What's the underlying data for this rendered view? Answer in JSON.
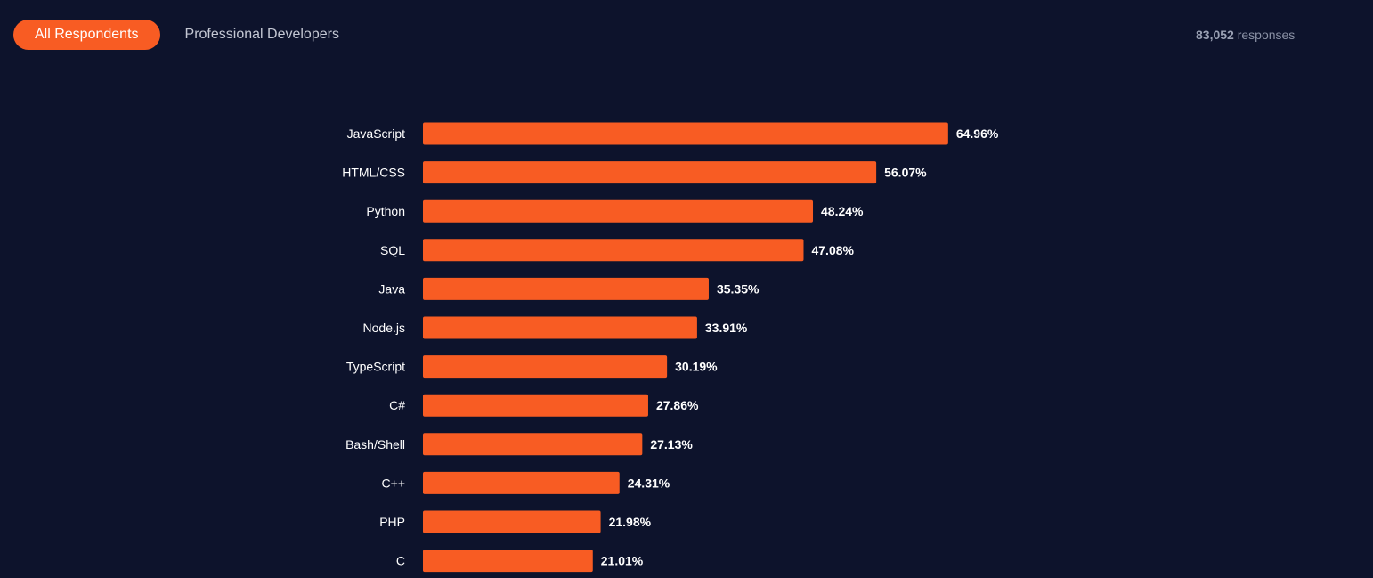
{
  "tabs": [
    {
      "label": "All Respondents",
      "active": true
    },
    {
      "label": "Professional Developers",
      "active": false
    }
  ],
  "responses": {
    "count": "83,052",
    "label": "responses"
  },
  "colors": {
    "background": "#0d132c",
    "bar": "#f85c23",
    "text": "#ffffff"
  },
  "chart_data": {
    "type": "bar",
    "orientation": "horizontal",
    "categories": [
      "JavaScript",
      "HTML/CSS",
      "Python",
      "SQL",
      "Java",
      "Node.js",
      "TypeScript",
      "C#",
      "Bash/Shell",
      "C++",
      "PHP",
      "C"
    ],
    "values": [
      64.96,
      56.07,
      48.24,
      47.08,
      35.35,
      33.91,
      30.19,
      27.86,
      27.13,
      24.31,
      21.98,
      21.01
    ],
    "value_labels": [
      "64.96%",
      "56.07%",
      "48.24%",
      "47.08%",
      "35.35%",
      "33.91%",
      "30.19%",
      "27.86%",
      "27.13%",
      "24.31%",
      "21.98%",
      "21.01%"
    ],
    "unit": "%",
    "title": "",
    "xlabel": "",
    "ylabel": "",
    "xlim": [
      0,
      100
    ],
    "grid": false
  }
}
